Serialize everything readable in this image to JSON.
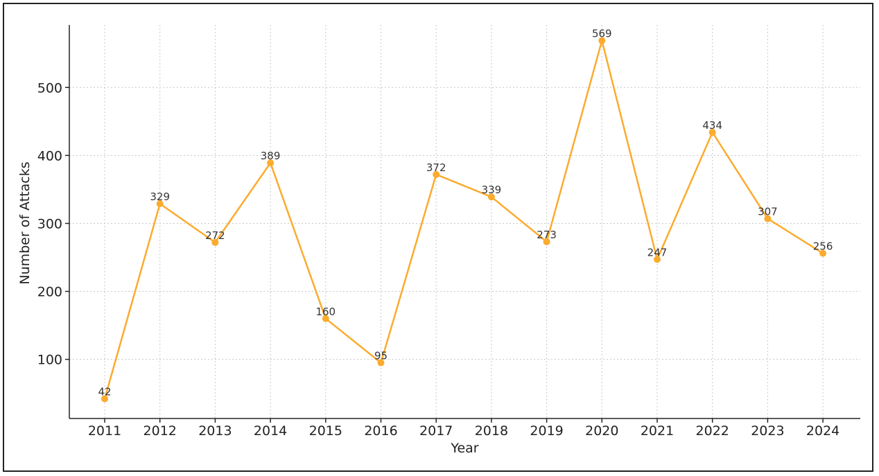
{
  "chart_data": {
    "type": "line",
    "title": "",
    "xlabel": "Year",
    "ylabel": "Number of Attacks",
    "categories": [
      "2011",
      "2012",
      "2013",
      "2014",
      "2015",
      "2016",
      "2017",
      "2018",
      "2019",
      "2020",
      "2021",
      "2022",
      "2023",
      "2024"
    ],
    "series": [
      {
        "values": [
          42,
          329,
          272,
          389,
          160,
          95,
          372,
          339,
          273,
          569,
          247,
          434,
          307,
          256
        ],
        "color": "#fbab2e"
      }
    ],
    "y_ticks": [
      100,
      200,
      300,
      400,
      500
    ],
    "ylim": [
      13,
      592
    ],
    "grid": true,
    "markers": true,
    "data_labels": true,
    "legend": "none"
  }
}
